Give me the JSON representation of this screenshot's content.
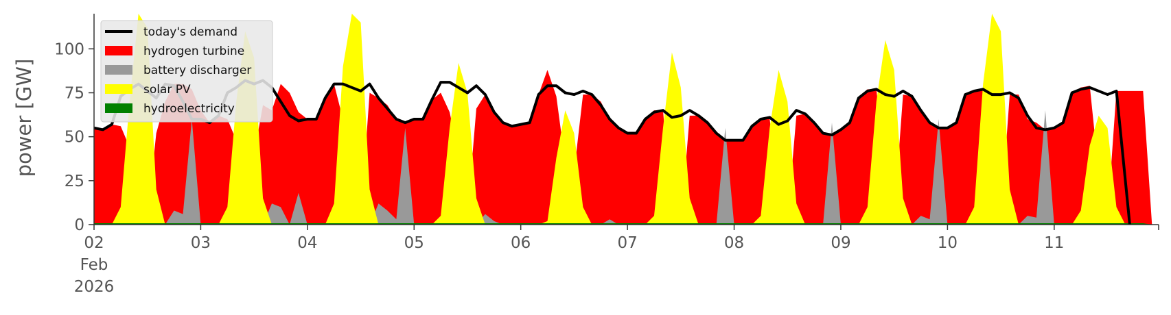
{
  "chart_data": {
    "type": "area",
    "title": "",
    "xlabel": "",
    "ylabel": "power [GW]",
    "ylim": [
      0,
      120
    ],
    "xlim": [
      "2026-02-02T00:00",
      "2026-02-11T23:30"
    ],
    "yticks": [
      0,
      25,
      50,
      75,
      100
    ],
    "xticks": [
      {
        "date": "2026-02-02",
        "label": "02",
        "sub": [
          "Feb",
          "2026"
        ]
      },
      {
        "date": "2026-02-03",
        "label": "03"
      },
      {
        "date": "2026-02-04",
        "label": "04"
      },
      {
        "date": "2026-02-05",
        "label": "05"
      },
      {
        "date": "2026-02-06",
        "label": "06"
      },
      {
        "date": "2026-02-07",
        "label": "07"
      },
      {
        "date": "2026-02-08",
        "label": "08"
      },
      {
        "date": "2026-02-09",
        "label": "09"
      },
      {
        "date": "2026-02-10",
        "label": "10"
      },
      {
        "date": "2026-02-11",
        "label": "11"
      }
    ],
    "grid": false,
    "legend_position": "top-left",
    "days": [
      "2026-02-02",
      "2026-02-03",
      "2026-02-04",
      "2026-02-05",
      "2026-02-06",
      "2026-02-07",
      "2026-02-08",
      "2026-02-09",
      "2026-02-10",
      "2026-02-11"
    ],
    "hours": [
      0,
      2,
      4,
      6,
      8,
      10,
      12,
      14,
      16,
      18,
      20,
      22
    ],
    "end_point": {
      "x": "2026-02-11T17:00",
      "y": 0
    },
    "series": [
      {
        "name": "hydrogen turbine",
        "kind": "area",
        "color": "#ff0000",
        "values": [
          [
            55,
            54,
            57,
            56,
            44,
            4,
            4,
            52,
            70,
            80,
            80,
            77
          ],
          [
            65,
            58,
            62,
            60,
            48,
            30,
            40,
            68,
            65,
            80,
            75,
            64
          ],
          [
            60,
            60,
            72,
            80,
            60,
            12,
            4,
            75,
            72,
            68,
            60,
            58
          ],
          [
            60,
            60,
            71,
            75,
            64,
            40,
            5,
            66,
            74,
            64,
            58,
            56
          ],
          [
            57,
            58,
            74,
            88,
            73,
            35,
            30,
            74,
            74,
            70,
            60,
            55
          ],
          [
            52,
            52,
            60,
            65,
            65,
            5,
            0,
            62,
            62,
            58,
            52,
            48
          ],
          [
            48,
            48,
            56,
            60,
            60,
            20,
            2,
            62,
            63,
            58,
            52,
            51
          ],
          [
            54,
            58,
            72,
            77,
            77,
            30,
            5,
            74,
            73,
            65,
            58,
            55
          ],
          [
            55,
            58,
            74,
            76,
            77,
            10,
            4,
            74,
            74,
            60,
            58,
            54
          ],
          [
            55,
            58,
            75,
            78,
            79,
            30,
            4,
            76,
            76,
            76,
            76,
            0
          ]
        ]
      },
      {
        "name": "battery discharger",
        "kind": "area",
        "color": "#999999",
        "values": [
          [
            0,
            0,
            0,
            0,
            0,
            0,
            0,
            0,
            0,
            8,
            6,
            60
          ],
          [
            0,
            0,
            0,
            0,
            0,
            0,
            0,
            0,
            12,
            10,
            0,
            18
          ],
          [
            0,
            0,
            0,
            0,
            0,
            0,
            0,
            0,
            12,
            8,
            3,
            55
          ],
          [
            0,
            0,
            0,
            0,
            0,
            0,
            0,
            0,
            6,
            2,
            0,
            0
          ],
          [
            0,
            0,
            0,
            0,
            0,
            0,
            0,
            0,
            0,
            0,
            3,
            0
          ],
          [
            0,
            0,
            0,
            0,
            0,
            0,
            0,
            0,
            0,
            0,
            0,
            55
          ],
          [
            0,
            0,
            0,
            0,
            0,
            0,
            0,
            0,
            0,
            0,
            0,
            58
          ],
          [
            0,
            0,
            0,
            0,
            0,
            0,
            0,
            0,
            0,
            5,
            3,
            60
          ],
          [
            0,
            0,
            0,
            0,
            0,
            0,
            0,
            0,
            0,
            5,
            4,
            65
          ],
          [
            0,
            0,
            0,
            0,
            0,
            0,
            0,
            0,
            0,
            0,
            0,
            0
          ]
        ]
      },
      {
        "name": "solar PV",
        "kind": "area",
        "color": "#ffff00",
        "values": [
          [
            0,
            0,
            0,
            10,
            70,
            130,
            112,
            20,
            0,
            0,
            0,
            0
          ],
          [
            0,
            0,
            0,
            10,
            70,
            110,
            95,
            15,
            0,
            0,
            0,
            0
          ],
          [
            0,
            0,
            0,
            12,
            90,
            135,
            115,
            20,
            0,
            0,
            0,
            0
          ],
          [
            0,
            0,
            0,
            5,
            55,
            92,
            75,
            15,
            0,
            0,
            0,
            0
          ],
          [
            0,
            0,
            0,
            2,
            38,
            65,
            52,
            10,
            0,
            0,
            0,
            0
          ],
          [
            0,
            0,
            0,
            5,
            55,
            98,
            78,
            15,
            0,
            0,
            0,
            0
          ],
          [
            0,
            0,
            0,
            5,
            55,
            88,
            70,
            12,
            0,
            0,
            0,
            0
          ],
          [
            0,
            0,
            0,
            10,
            70,
            105,
            88,
            15,
            0,
            0,
            0,
            0
          ],
          [
            0,
            0,
            0,
            10,
            80,
            130,
            110,
            20,
            0,
            0,
            0,
            0
          ],
          [
            0,
            0,
            0,
            8,
            45,
            62,
            55,
            10,
            0,
            0,
            0,
            0
          ]
        ]
      },
      {
        "name": "hydroelectricity",
        "kind": "area",
        "color": "#008000",
        "values": [
          [
            0.8,
            0.8,
            0.8,
            0.8,
            0.8,
            0.8,
            0.8,
            0.8,
            0.8,
            0.8,
            0.8,
            0.8
          ],
          [
            0.8,
            0.8,
            0.8,
            0.8,
            0.8,
            0.8,
            0.8,
            0.8,
            0.8,
            0.8,
            0.8,
            0.8
          ],
          [
            0.8,
            0.8,
            0.8,
            0.8,
            0.8,
            0.8,
            0.8,
            0.8,
            0.8,
            0.8,
            0.8,
            0.8
          ],
          [
            0.8,
            0.8,
            0.8,
            0.8,
            0.8,
            0.8,
            0.8,
            0.8,
            0.8,
            0.8,
            0.8,
            0.8
          ],
          [
            0.8,
            0.8,
            0.8,
            0.8,
            0.8,
            0.8,
            0.8,
            0.8,
            0.8,
            0.8,
            0.8,
            0.8
          ],
          [
            0.8,
            0.8,
            0.8,
            0.8,
            0.8,
            0.8,
            0.8,
            0.8,
            0.8,
            0.8,
            0.8,
            0.8
          ],
          [
            0.8,
            0.8,
            0.8,
            0.8,
            0.8,
            0.8,
            0.8,
            0.8,
            0.8,
            0.8,
            0.8,
            0.8
          ],
          [
            0.8,
            0.8,
            0.8,
            0.8,
            0.8,
            0.8,
            0.8,
            0.8,
            0.8,
            0.8,
            0.8,
            0.8
          ],
          [
            0.8,
            0.8,
            0.8,
            0.8,
            0.8,
            0.8,
            0.8,
            0.8,
            0.8,
            0.8,
            0.8,
            0.8
          ],
          [
            0.8,
            0.8,
            0.8,
            0.8,
            0.8,
            0.8,
            0.8,
            0.8,
            0.8,
            0.8,
            0.8,
            0
          ]
        ]
      },
      {
        "name": "today's demand",
        "kind": "line",
        "color": "#000000",
        "values": [
          [
            55,
            54,
            57,
            73,
            77,
            80,
            76,
            72,
            80,
            79,
            70,
            60
          ],
          [
            60,
            58,
            62,
            75,
            78,
            82,
            80,
            82,
            78,
            70,
            62,
            59
          ],
          [
            60,
            60,
            72,
            80,
            80,
            78,
            76,
            80,
            72,
            66,
            60,
            58
          ],
          [
            60,
            60,
            71,
            81,
            81,
            78,
            75,
            79,
            74,
            64,
            58,
            56
          ],
          [
            57,
            58,
            74,
            79,
            79,
            75,
            74,
            76,
            74,
            68,
            60,
            55
          ],
          [
            52,
            52,
            60,
            64,
            65,
            61,
            62,
            65,
            62,
            58,
            52,
            48
          ],
          [
            48,
            48,
            56,
            60,
            61,
            57,
            59,
            65,
            63,
            58,
            52,
            51
          ],
          [
            54,
            58,
            72,
            76,
            77,
            74,
            73,
            76,
            73,
            65,
            58,
            55
          ],
          [
            55,
            58,
            74,
            76,
            77,
            74,
            74,
            75,
            72,
            62,
            55,
            54
          ],
          [
            55,
            58,
            75,
            77,
            78,
            76,
            74,
            76,
            0,
            0,
            0,
            0
          ]
        ]
      }
    ]
  }
}
